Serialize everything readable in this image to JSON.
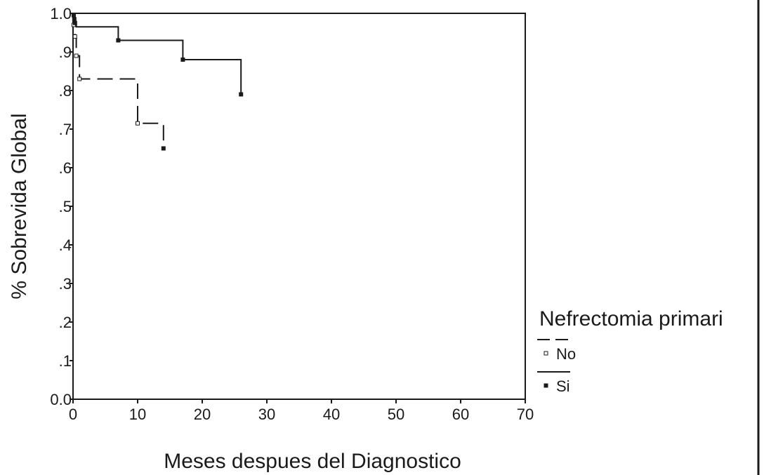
{
  "chart_data": {
    "type": "line",
    "title": "",
    "xlabel": "Meses despues del Diagnostico",
    "ylabel": "% Sobrevida Global",
    "xlim": [
      0,
      70
    ],
    "ylim": [
      0,
      1
    ],
    "x_ticks": [
      0,
      10,
      20,
      30,
      40,
      50,
      60,
      70
    ],
    "x_tick_labels": [
      "0",
      "10",
      "20",
      "30",
      "40",
      "50",
      "60",
      "70"
    ],
    "y_ticks": [
      0,
      0.1,
      0.2,
      0.3,
      0.4,
      0.5,
      0.6,
      0.7,
      0.8,
      0.9,
      1.0
    ],
    "y_tick_labels": [
      "0.0",
      ".1",
      ".2",
      ".3",
      ".4",
      ".5",
      ".6",
      ".7",
      ".8",
      ".9",
      "1.0"
    ],
    "grid": false,
    "legend": {
      "title": "Nefrectomia primari",
      "position": "right",
      "entries": [
        "No",
        "Si"
      ]
    },
    "series": [
      {
        "name": "No",
        "line_style": "dashed",
        "marker": "hollow-square",
        "color": "#1a1a1a",
        "steps": [
          [
            0,
            1.0
          ],
          [
            0.3,
            0.94
          ],
          [
            0.5,
            0.89
          ],
          [
            1.0,
            0.83
          ],
          [
            10.0,
            0.715
          ],
          [
            14.0,
            0.65
          ]
        ],
        "censored": [
          [
            0.1,
            0.97
          ],
          [
            0.3,
            0.94
          ],
          [
            0.5,
            0.89
          ],
          [
            1.0,
            0.83
          ],
          [
            10.0,
            0.715
          ],
          [
            14.0,
            0.65
          ]
        ]
      },
      {
        "name": "Si",
        "line_style": "solid",
        "marker": "filled-square",
        "color": "#1a1a1a",
        "steps": [
          [
            0,
            1.0
          ],
          [
            0.1,
            0.995
          ],
          [
            0.2,
            0.985
          ],
          [
            0.3,
            0.975
          ],
          [
            0.5,
            0.965
          ],
          [
            7.0,
            0.93
          ],
          [
            17.0,
            0.88
          ],
          [
            26.0,
            0.79
          ]
        ],
        "censored": [
          [
            0.1,
            0.995
          ],
          [
            0.2,
            0.985
          ],
          [
            0.3,
            0.975
          ],
          [
            7.0,
            0.93
          ],
          [
            17.0,
            0.88
          ],
          [
            26.0,
            0.79
          ]
        ]
      }
    ]
  }
}
